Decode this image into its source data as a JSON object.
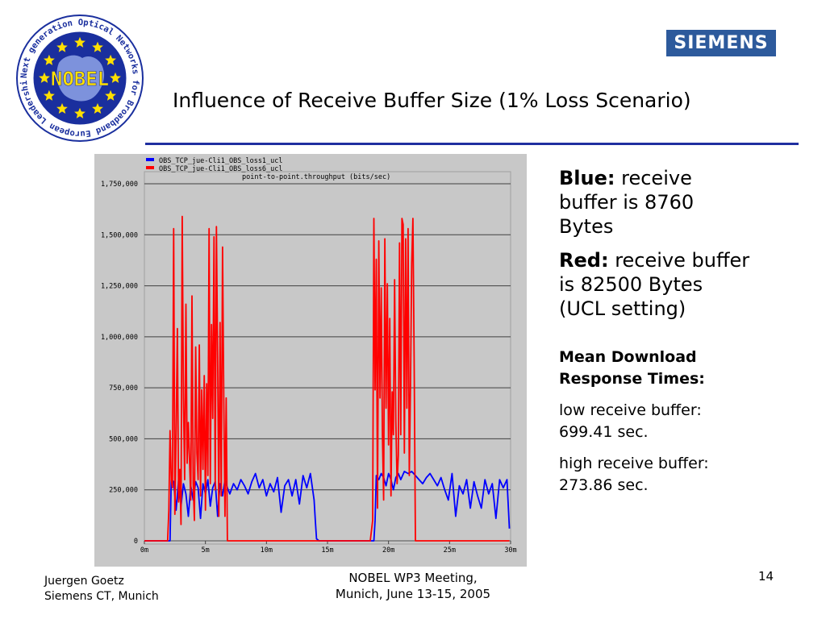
{
  "header": {
    "title": "Influence of Receive Buffer Size (1% Loss Scenario)",
    "logo_text": "NOBEL",
    "logo_ring_text": "Next generation Optical Networks for Broadband European Leadership",
    "company_logo": "SIEMENS"
  },
  "notes": {
    "blue_label": "Blue:",
    "blue_text": "receive buffer is 8760 Bytes",
    "red_label": "Red:",
    "red_text": "receive buffer is 82500 Bytes (UCL setting)",
    "mean_title": "Mean Download Response Times:",
    "low_line": "low receive buffer: 699.41 sec.",
    "high_line": "high receive buffer: 273.86 sec."
  },
  "footer": {
    "author": "Juergen Goetz",
    "org": "Siemens CT, Munich",
    "meeting_line1": "NOBEL WP3 Meeting,",
    "meeting_line2": "Munich, June 13-15, 2005",
    "page": "14"
  },
  "colors": {
    "blue": "#0000ff",
    "red": "#ff0000",
    "rule": "#1f2fa0",
    "siemens": "#2d5a9c"
  },
  "chart_data": {
    "type": "line",
    "title": "point-to-point.throughput (bits/sec)",
    "xlabel": "",
    "ylabel": "",
    "xlim": [
      0,
      30
    ],
    "ylim": [
      0,
      1750000
    ],
    "x_ticks": [
      "0m",
      "5m",
      "10m",
      "15m",
      "20m",
      "25m",
      "30m"
    ],
    "x_tick_values": [
      0,
      5,
      10,
      15,
      20,
      25,
      30
    ],
    "y_ticks": [
      "0",
      "250,000",
      "500,000",
      "750,000",
      "1,000,000",
      "1,250,000",
      "1,500,000",
      "1,750,000"
    ],
    "y_tick_values": [
      0,
      250000,
      500000,
      750000,
      1000000,
      1250000,
      1500000,
      1750000
    ],
    "grid": true,
    "legend_position": "top",
    "series": [
      {
        "name": "OBS_TCP_jue-Cli1_OBS_loss1_ucl",
        "color": "#0000ff",
        "x": [
          0,
          2.1,
          2.2,
          2.4,
          2.6,
          2.8,
          3.0,
          3.2,
          3.4,
          3.6,
          3.8,
          4.0,
          4.2,
          4.4,
          4.6,
          4.8,
          5.0,
          5.2,
          5.4,
          5.6,
          5.8,
          6.0,
          6.2,
          6.4,
          6.6,
          6.8,
          7.0,
          7.3,
          7.6,
          7.9,
          8.2,
          8.5,
          8.8,
          9.1,
          9.4,
          9.7,
          10.0,
          10.3,
          10.6,
          10.9,
          11.2,
          11.5,
          11.8,
          12.1,
          12.4,
          12.7,
          13.0,
          13.3,
          13.6,
          13.9,
          14.0,
          14.1,
          14.3,
          18.8,
          18.9,
          19.0,
          19.2,
          19.4,
          19.6,
          19.8,
          20.0,
          20.2,
          20.4,
          20.6,
          20.8,
          21.0,
          21.3,
          21.6,
          21.9,
          22.2,
          22.5,
          22.8,
          23.1,
          23.4,
          23.7,
          24.0,
          24.3,
          24.6,
          24.9,
          25.2,
          25.5,
          25.8,
          26.1,
          26.4,
          26.7,
          27.0,
          27.3,
          27.6,
          27.9,
          28.2,
          28.5,
          28.8,
          29.1,
          29.4,
          29.7,
          29.9
        ],
        "values": [
          0,
          0,
          300000,
          290000,
          150000,
          300000,
          170000,
          280000,
          230000,
          120000,
          270000,
          200000,
          290000,
          260000,
          110000,
          280000,
          230000,
          300000,
          170000,
          260000,
          290000,
          120000,
          280000,
          220000,
          300000,
          260000,
          230000,
          280000,
          250000,
          300000,
          270000,
          230000,
          290000,
          330000,
          260000,
          300000,
          220000,
          280000,
          240000,
          310000,
          140000,
          270000,
          300000,
          220000,
          300000,
          180000,
          320000,
          260000,
          330000,
          200000,
          100000,
          10000,
          0,
          0,
          100000,
          320000,
          300000,
          330000,
          310000,
          270000,
          330000,
          300000,
          250000,
          310000,
          330000,
          300000,
          340000,
          330000,
          340000,
          320000,
          300000,
          280000,
          310000,
          330000,
          300000,
          270000,
          310000,
          250000,
          200000,
          330000,
          120000,
          270000,
          230000,
          300000,
          160000,
          290000,
          220000,
          160000,
          300000,
          230000,
          280000,
          110000,
          300000,
          260000,
          300000,
          60000
        ]
      },
      {
        "name": "OBS_TCP_jue-Cli1_OBS_loss6_ucl",
        "color": "#ff0000",
        "x": [
          0,
          1.9,
          2.0,
          2.1,
          2.2,
          2.3,
          2.4,
          2.5,
          2.6,
          2.7,
          2.8,
          2.9,
          3.0,
          3.1,
          3.2,
          3.3,
          3.4,
          3.5,
          3.6,
          3.7,
          3.8,
          3.9,
          4.0,
          4.1,
          4.2,
          4.3,
          4.4,
          4.5,
          4.6,
          4.7,
          4.8,
          4.9,
          5.0,
          5.1,
          5.2,
          5.3,
          5.4,
          5.5,
          5.6,
          5.7,
          5.8,
          5.9,
          6.0,
          6.1,
          6.2,
          6.3,
          6.4,
          6.5,
          6.6,
          6.7,
          6.8,
          6.9,
          7.0,
          18.5,
          18.7,
          18.8,
          18.9,
          19.0,
          19.1,
          19.2,
          19.3,
          19.4,
          19.5,
          19.6,
          19.7,
          19.8,
          19.9,
          20.0,
          20.1,
          20.2,
          20.3,
          20.4,
          20.5,
          20.6,
          20.7,
          20.8,
          20.9,
          21.0,
          21.1,
          21.2,
          21.3,
          21.4,
          21.5,
          21.6,
          21.7,
          21.8,
          21.9,
          22.0,
          22.1,
          22.2,
          22.3,
          29.9
        ],
        "values": [
          0,
          0,
          150000,
          540000,
          300000,
          260000,
          1530000,
          130000,
          520000,
          1040000,
          190000,
          350000,
          80000,
          1590000,
          700000,
          300000,
          1160000,
          380000,
          580000,
          390000,
          200000,
          1200000,
          280000,
          100000,
          950000,
          430000,
          300000,
          960000,
          220000,
          740000,
          350000,
          810000,
          150000,
          770000,
          320000,
          1530000,
          280000,
          1060000,
          600000,
          1490000,
          250000,
          1540000,
          900000,
          120000,
          1070000,
          220000,
          1440000,
          700000,
          120000,
          700000,
          0,
          0,
          0,
          0,
          100000,
          1580000,
          740000,
          1380000,
          160000,
          1470000,
          700000,
          1240000,
          520000,
          200000,
          1480000,
          650000,
          1260000,
          470000,
          1090000,
          220000,
          730000,
          520000,
          1280000,
          590000,
          280000,
          420000,
          1460000,
          520000,
          1580000,
          1550000,
          430000,
          1480000,
          650000,
          1530000,
          320000,
          760000,
          1360000,
          1580000,
          900000,
          0,
          0,
          0
        ]
      }
    ]
  }
}
